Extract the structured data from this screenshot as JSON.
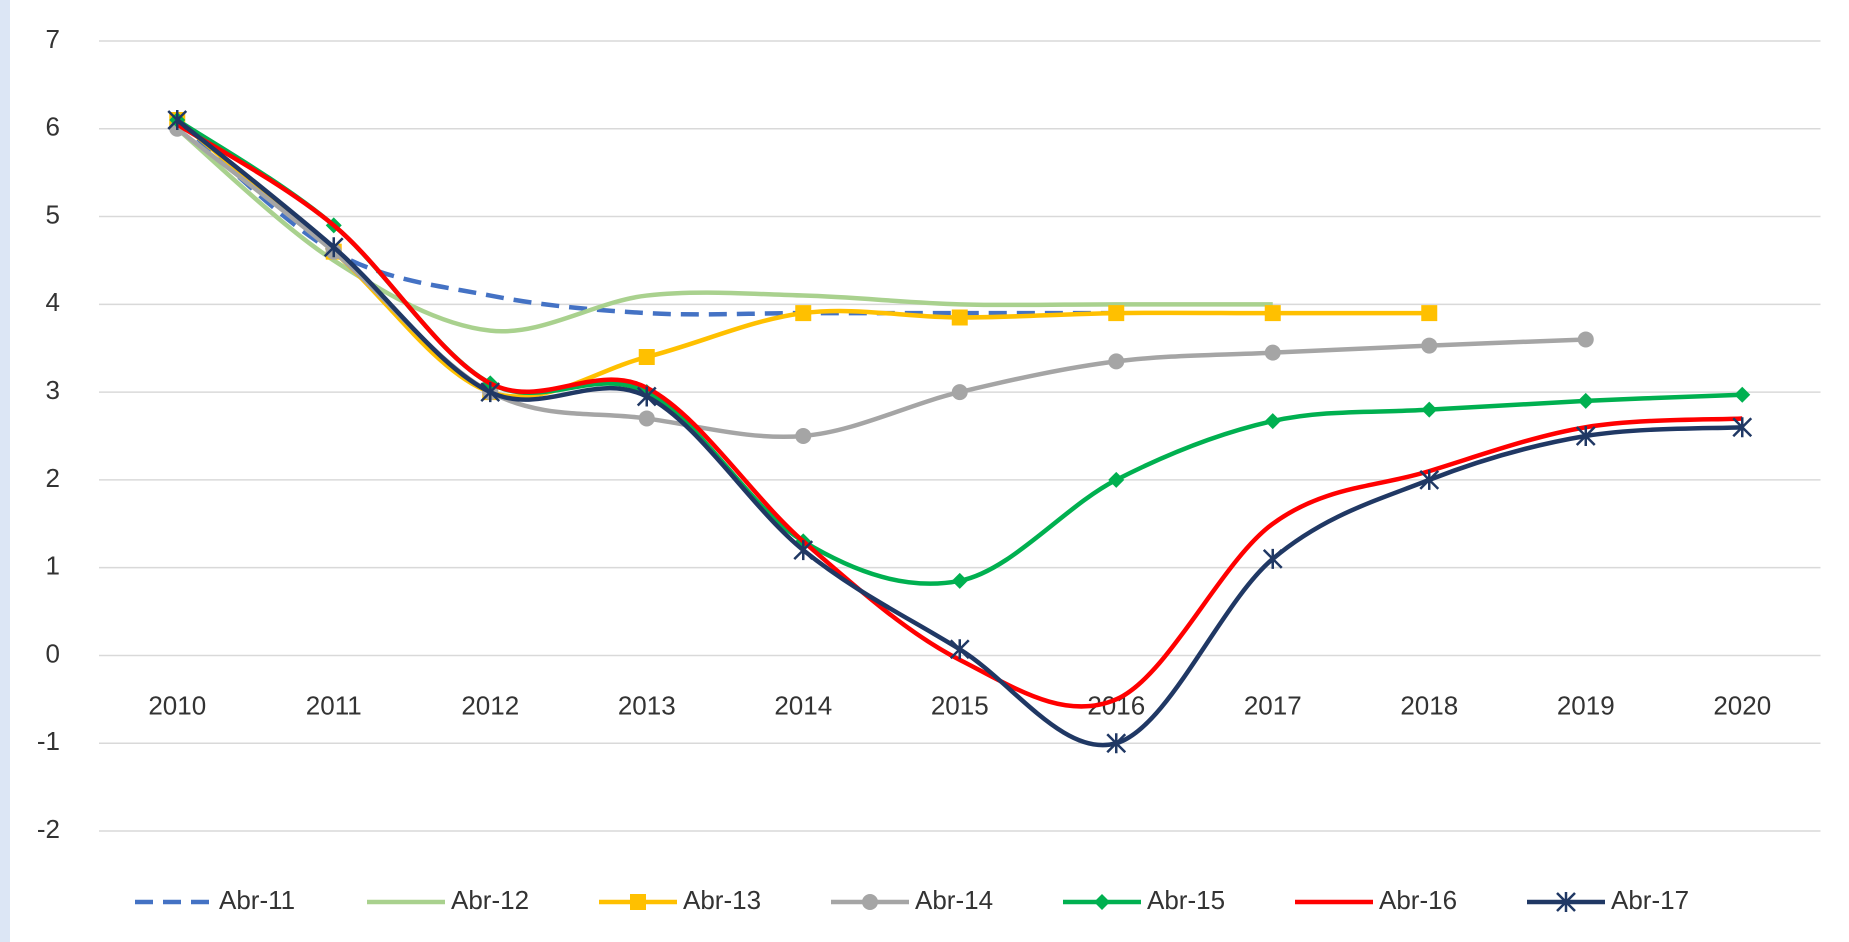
{
  "chart_data": {
    "type": "line",
    "categories": [
      "2010",
      "2011",
      "2012",
      "2013",
      "2014",
      "2015",
      "2016",
      "2017",
      "2018",
      "2019",
      "2020"
    ],
    "series": [
      {
        "name": "Abr-11",
        "color": "#4472c4",
        "dashed": true,
        "marker": "none",
        "values": [
          6.1,
          4.6,
          4.1,
          3.9,
          3.9,
          3.9,
          3.9,
          null,
          null,
          null,
          null
        ]
      },
      {
        "name": "Abr-12",
        "color": "#a9d18e",
        "marker": "none",
        "values": [
          6.0,
          4.5,
          3.7,
          4.1,
          4.1,
          4.0,
          4.0,
          4.0,
          null,
          null,
          null
        ]
      },
      {
        "name": "Abr-13",
        "color": "#ffc000",
        "marker": "square",
        "values": [
          6.1,
          4.6,
          3.0,
          3.4,
          3.9,
          3.85,
          3.9,
          3.9,
          3.9,
          null,
          null
        ]
      },
      {
        "name": "Abr-14",
        "color": "#a5a5a5",
        "marker": "circle",
        "values": [
          6.0,
          4.6,
          3.0,
          2.7,
          2.5,
          3.0,
          3.35,
          3.45,
          3.53,
          3.6,
          null
        ]
      },
      {
        "name": "Abr-15",
        "color": "#00b050",
        "marker": "diamond",
        "values": [
          6.1,
          4.9,
          3.1,
          3.0,
          1.3,
          0.85,
          2.0,
          2.67,
          2.8,
          2.9,
          2.97
        ]
      },
      {
        "name": "Abr-16",
        "color": "#ff0000",
        "marker": "none",
        "values": [
          6.05,
          4.9,
          3.1,
          3.05,
          1.3,
          -0.05,
          -0.5,
          1.5,
          2.1,
          2.6,
          2.7
        ]
      },
      {
        "name": "Abr-17",
        "color": "#203864",
        "marker": "star",
        "values": [
          6.1,
          4.65,
          3.0,
          2.95,
          1.2,
          0.07,
          -1.0,
          1.1,
          2.0,
          2.5,
          2.6
        ]
      }
    ],
    "ylim": [
      -2,
      7
    ],
    "yticks": [
      -2,
      -1,
      0,
      1,
      2,
      3,
      4,
      5,
      6,
      7
    ],
    "grid": true,
    "smooth": true,
    "legend": "bottom"
  }
}
